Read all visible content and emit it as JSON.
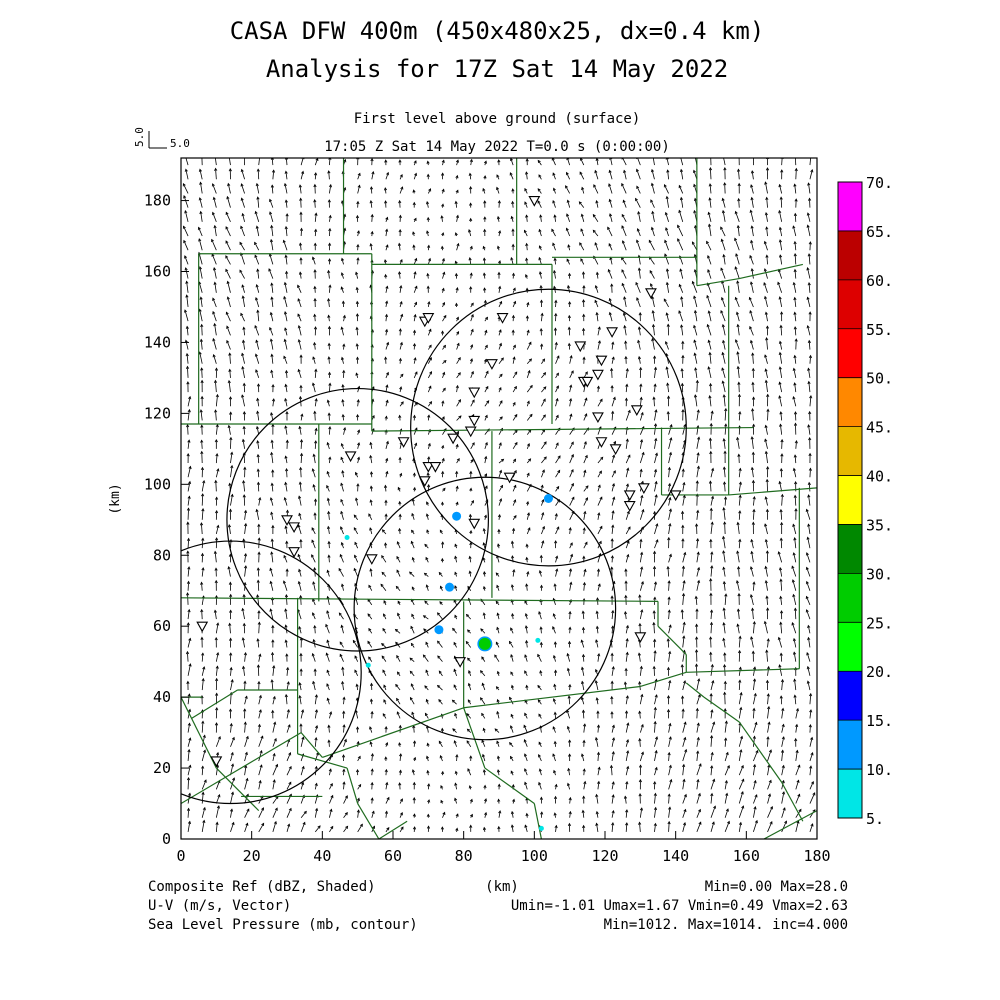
{
  "chart_data": {
    "type": "heatmap",
    "title": "CASA DFW 400m (450x480x25, dx=0.4 km)",
    "subtitle": "Analysis for 17Z Sat 14 May 2022",
    "level_label": "First level above ground (surface)",
    "time_label": "17:05 Z Sat 14 May 2022    T=0.0 s (0:00:00)",
    "vector_ref": {
      "vertical_label": "5.0",
      "horizontal_label": "5.0"
    },
    "xlabel": "(km)",
    "ylabel": "(km)",
    "xlim": [
      0,
      180
    ],
    "ylim": [
      0,
      192
    ],
    "x_ticks": [
      0,
      20,
      40,
      60,
      80,
      100,
      120,
      140,
      160,
      180
    ],
    "y_ticks": [
      0,
      20,
      40,
      60,
      80,
      100,
      120,
      140,
      160,
      180
    ],
    "colorbar": {
      "levels": [
        "5.",
        "10.",
        "15.",
        "20.",
        "25.",
        "30.",
        "35.",
        "40.",
        "45.",
        "50.",
        "55.",
        "60.",
        "65.",
        "70."
      ],
      "colors": [
        "#00e6e6",
        "#0099ff",
        "#0000ff",
        "#00ff00",
        "#00cc00",
        "#008800",
        "#ffff00",
        "#e6b800",
        "#ff8800",
        "#ff0000",
        "#dd0000",
        "#bb0000",
        "#ff00ff"
      ]
    },
    "radar_rings": [
      {
        "x": 14,
        "y": 47,
        "r": 37
      },
      {
        "x": 50,
        "y": 90,
        "r": 37
      },
      {
        "x": 86,
        "y": 65,
        "r": 37
      },
      {
        "x": 104,
        "y": 116,
        "r": 39
      }
    ],
    "reflectivity_cells": [
      {
        "x": 104,
        "y": 96,
        "dbz": 12
      },
      {
        "x": 78,
        "y": 91,
        "dbz": 12
      },
      {
        "x": 76,
        "y": 71,
        "dbz": 12
      },
      {
        "x": 73,
        "y": 59,
        "dbz": 12
      },
      {
        "x": 86,
        "y": 55,
        "dbz": 28
      },
      {
        "x": 53,
        "y": 49,
        "dbz": 8
      },
      {
        "x": 47,
        "y": 85,
        "dbz": 8
      },
      {
        "x": 101,
        "y": 56,
        "dbz": 8
      },
      {
        "x": 102,
        "y": 3,
        "dbz": 8
      }
    ],
    "stations": [
      [
        100,
        180
      ],
      [
        133,
        154
      ],
      [
        69,
        146
      ],
      [
        70,
        147
      ],
      [
        91,
        147
      ],
      [
        122,
        143
      ],
      [
        113,
        139
      ],
      [
        119,
        135
      ],
      [
        88,
        134
      ],
      [
        118,
        131
      ],
      [
        114,
        129
      ],
      [
        115,
        129
      ],
      [
        83,
        126
      ],
      [
        129,
        121
      ],
      [
        118,
        119
      ],
      [
        83,
        118
      ],
      [
        82,
        115
      ],
      [
        63,
        112
      ],
      [
        77,
        113
      ],
      [
        119,
        112
      ],
      [
        123,
        110
      ],
      [
        48,
        108
      ],
      [
        70,
        105
      ],
      [
        72,
        105
      ],
      [
        93,
        102
      ],
      [
        69,
        101
      ],
      [
        131,
        99
      ],
      [
        127,
        97
      ],
      [
        140,
        97
      ],
      [
        127,
        94
      ],
      [
        83,
        89
      ],
      [
        30,
        90
      ],
      [
        32,
        88
      ],
      [
        32,
        81
      ],
      [
        54,
        79
      ],
      [
        6,
        60
      ],
      [
        130,
        57
      ],
      [
        79,
        50
      ],
      [
        10,
        22
      ]
    ],
    "wind_field": {
      "u_range": [
        -1.01,
        1.67
      ],
      "v_range": [
        0.49,
        2.63
      ]
    },
    "footer": {
      "field1": "Composite Ref (dBZ, Shaded)",
      "field2": "U-V (m/s, Vector)",
      "field3": "Sea Level Pressure (mb, contour)",
      "x_unit": "(km)",
      "stats1": "Min=0.00 Max=28.0",
      "stats2": "Umin=-1.01 Umax=1.67 Vmin=0.49 Vmax=2.63",
      "stats3": "Min=1012. Max=1014. inc=4.000"
    },
    "colors": {
      "county_lines": "#1f6b1f",
      "frame": "#000000",
      "arrows": "#000000"
    }
  }
}
